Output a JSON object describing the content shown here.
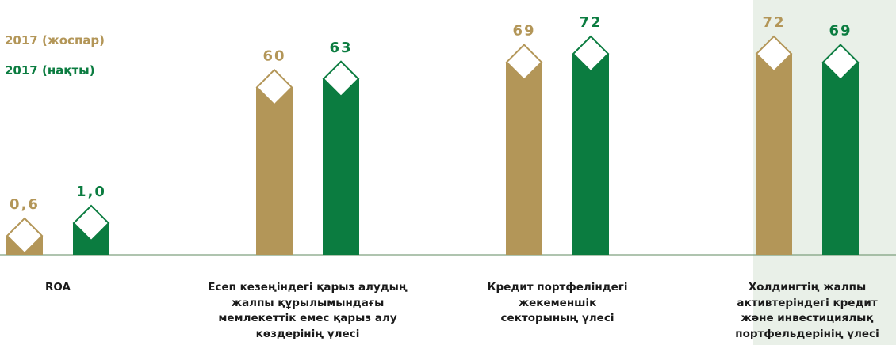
{
  "chart_data": {
    "type": "bar",
    "categories": [
      "ROA",
      "Есеп кезеңіндегі қарыз алудың\nжалпы құрылымындағы\nмемлекеттік емес қарыз алу\nкөздерінің үлесі",
      "Кредит портфеліндегі\nжекеменшік\nсекторының үлесі",
      "Холдингтің жалпы\nактивтеріндегі кредит\nжәне инвестициялық\nпортфельдерінің үлесі"
    ],
    "series": [
      {
        "name": "2017 (жоспар)",
        "color": "#b39658",
        "values": [
          0.6,
          60,
          69,
          72
        ],
        "value_labels": [
          "0,6",
          "60",
          "69",
          "72"
        ]
      },
      {
        "name": "2017 (нақты)",
        "color": "#0b7c40",
        "values": [
          1.0,
          63,
          72,
          69
        ],
        "value_labels": [
          "1,0",
          "63",
          "72",
          "69"
        ]
      }
    ]
  }
}
